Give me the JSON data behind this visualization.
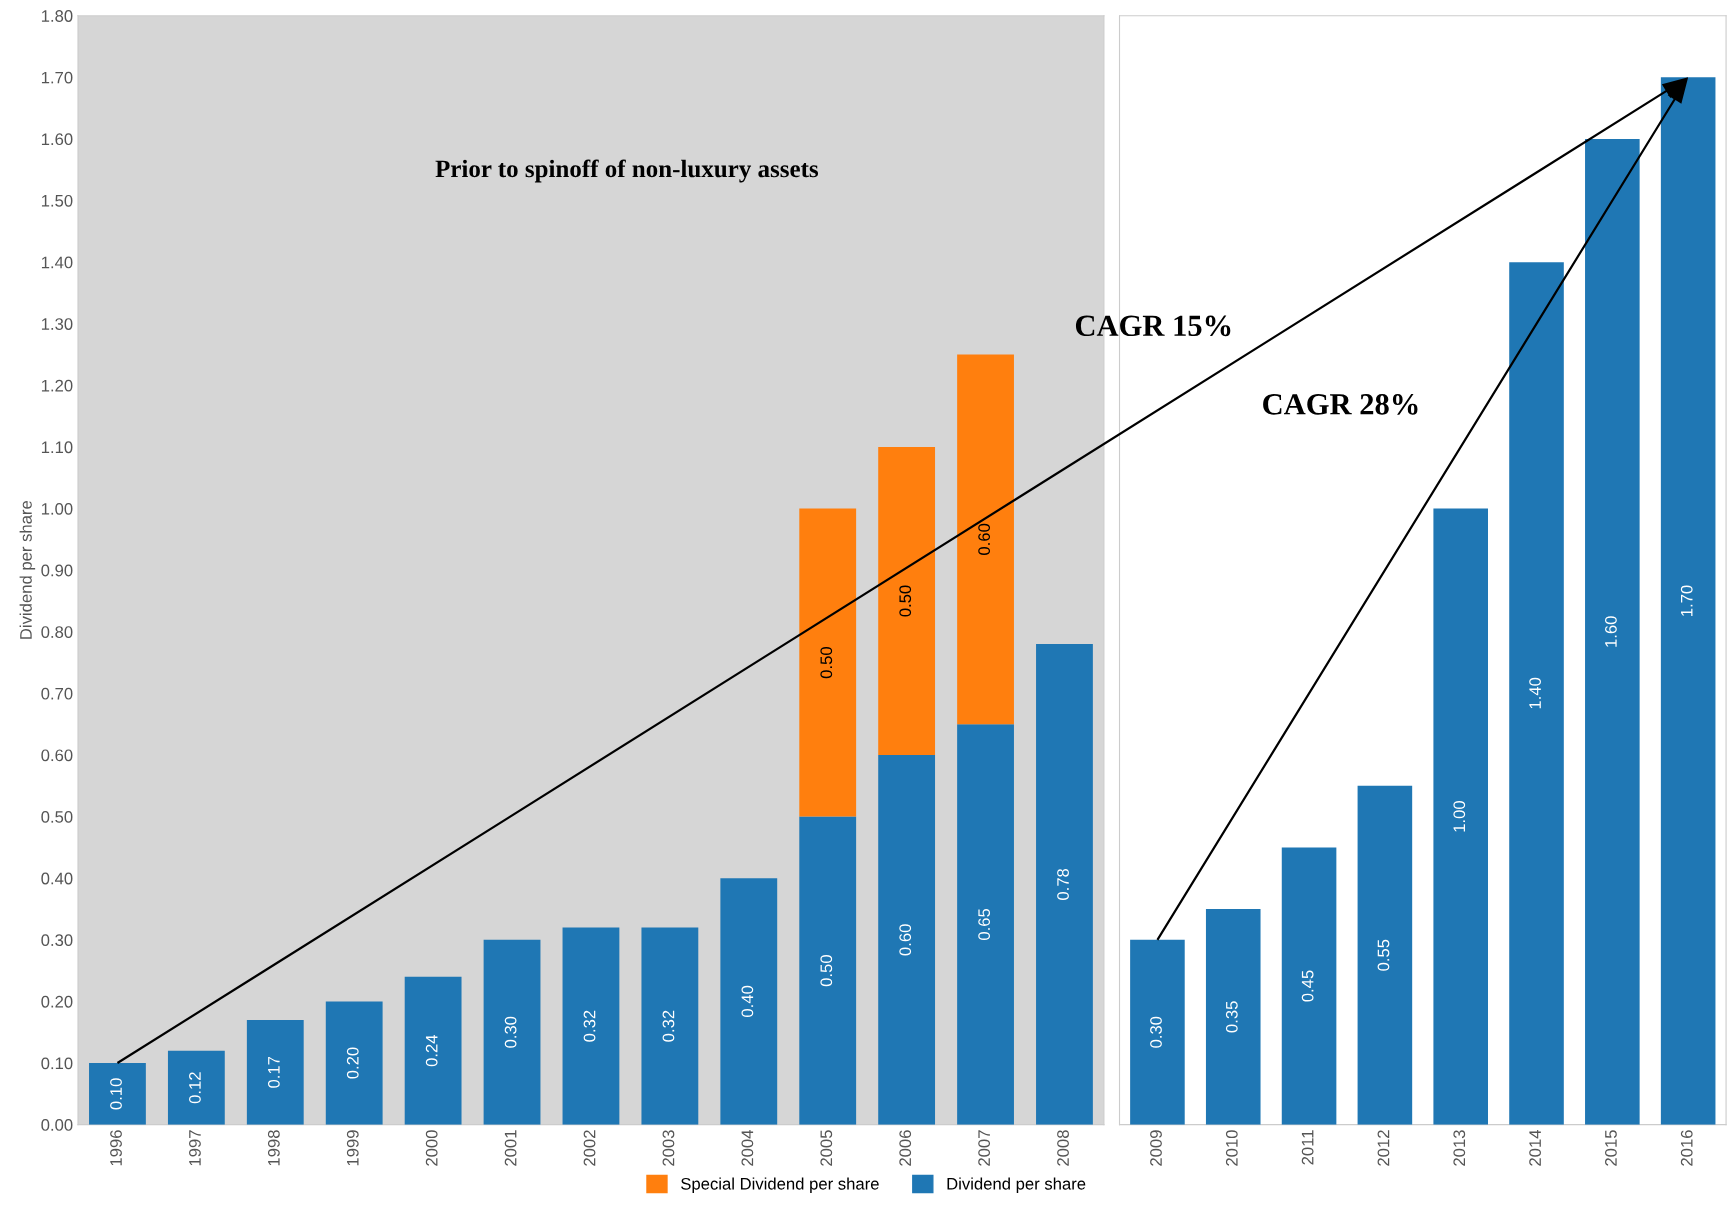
{
  "chart_data": [
    {
      "type": "bar",
      "stacked": true,
      "ylabel": "Dividend per share",
      "legend": "bottom",
      "grid": false,
      "categories": [
        "1996",
        "1997",
        "1998",
        "1999",
        "2000",
        "2001",
        "2002",
        "2003",
        "2004",
        "2005",
        "2006",
        "2007",
        "2008"
      ],
      "series": [
        {
          "name": "Dividend per share",
          "color": "#1f77b4",
          "values": [
            0.1,
            0.12,
            0.17,
            0.2,
            0.24,
            0.3,
            0.32,
            0.32,
            0.4,
            0.5,
            0.6,
            0.65,
            0.78
          ],
          "value_labels": [
            "0.10",
            "0.12",
            "0.17",
            "0.20",
            "0.24",
            "0.30",
            "0.32",
            "0.32",
            "0.40",
            "0.50",
            "0.60",
            "0.65",
            "0.78"
          ]
        },
        {
          "name": "Special Dividend per share",
          "color": "#ff7f0e",
          "values": [
            null,
            null,
            null,
            null,
            null,
            null,
            null,
            null,
            null,
            0.5,
            0.5,
            0.6,
            null
          ],
          "value_labels": [
            null,
            null,
            null,
            null,
            null,
            null,
            null,
            null,
            null,
            "0.50",
            "0.50",
            "0.60",
            null
          ]
        }
      ],
      "ylim": [
        0,
        1.8
      ],
      "yticks": [
        {
          "value": 0,
          "label": "0.00"
        },
        {
          "value": 0.1,
          "label": "0.10"
        },
        {
          "value": 0.2,
          "label": "0.20"
        },
        {
          "value": 0.3,
          "label": "0.30"
        },
        {
          "value": 0.4,
          "label": "0.40"
        },
        {
          "value": 0.5,
          "label": "0.50"
        },
        {
          "value": 0.6,
          "label": "0.60"
        },
        {
          "value": 0.7,
          "label": "0.70"
        },
        {
          "value": 0.8,
          "label": "0.80"
        },
        {
          "value": 0.9,
          "label": "0.90"
        },
        {
          "value": 1.0,
          "label": "1.00"
        },
        {
          "value": 1.1,
          "label": "1.10"
        },
        {
          "value": 1.2,
          "label": "1.20"
        },
        {
          "value": 1.3,
          "label": "1.30"
        },
        {
          "value": 1.4,
          "label": "1.40"
        },
        {
          "value": 1.5,
          "label": "1.50"
        },
        {
          "value": 1.6,
          "label": "1.60"
        },
        {
          "value": 1.7,
          "label": "1.70"
        },
        {
          "value": 1.8,
          "label": "1.80"
        }
      ],
      "bands": [
        {
          "axis": "x",
          "from": "1996",
          "to": "2008",
          "label": "Prior to spinoff of non-luxury assets",
          "color": "#d6d6d6"
        }
      ],
      "annotations": [
        "CAGR 15%"
      ]
    },
    {
      "type": "bar",
      "stacked": true,
      "grid": false,
      "tick_labels": "x",
      "categories": [
        "2009",
        "2010",
        "2011",
        "2012",
        "2013",
        "2014",
        "2015",
        "2016"
      ],
      "series": [
        {
          "color": "#1f77b4",
          "values": [
            0.3,
            0.35,
            0.45,
            0.55,
            1.0,
            1.4,
            1.6,
            1.7
          ],
          "value_labels": [
            "0.30",
            "0.35",
            "0.45",
            "0.55",
            "1.00",
            "1.40",
            "1.60",
            "1.70"
          ]
        }
      ],
      "ylim": [
        0,
        1.8
      ],
      "annotations": [
        "CAGR 28%"
      ]
    }
  ]
}
